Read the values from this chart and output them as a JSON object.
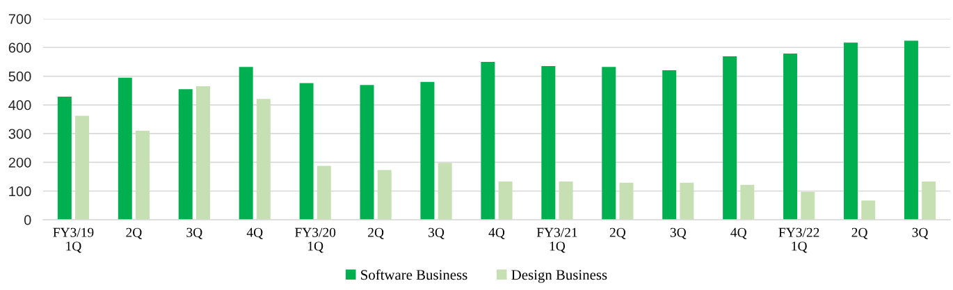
{
  "chart_data": {
    "type": "bar",
    "categories": [
      "FY3/19\n1Q",
      "2Q",
      "3Q",
      "4Q",
      "FY3/20\n1Q",
      "2Q",
      "3Q",
      "4Q",
      "FY3/21\n1Q",
      "2Q",
      "3Q",
      "4Q",
      "FY3/22\n1Q",
      "2Q",
      "3Q"
    ],
    "series": [
      {
        "name": "Software Business",
        "color": "#00b050",
        "values": [
          429,
          495,
          455,
          532,
          476,
          469,
          480,
          550,
          535,
          532,
          521,
          569,
          579,
          617,
          624
        ]
      },
      {
        "name": "Design Business",
        "color": "#c6e0b4",
        "values": [
          362,
          310,
          465,
          421,
          188,
          173,
          198,
          133,
          133,
          129,
          129,
          122,
          97,
          67,
          133
        ]
      }
    ],
    "ylim": [
      0,
      700
    ],
    "yticks": [
      0,
      100,
      200,
      300,
      400,
      500,
      600,
      700
    ],
    "grid": "y",
    "legend": "bottom"
  }
}
